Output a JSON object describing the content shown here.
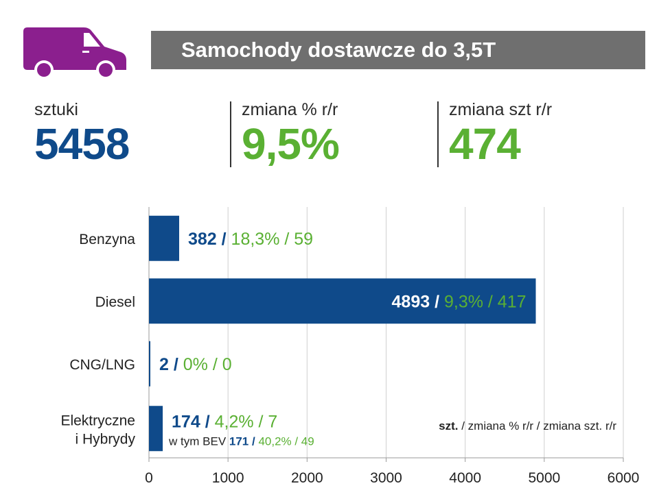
{
  "header": {
    "title": "Samochody dostawcze do 3,5T",
    "icon": "van-icon",
    "icon_color": "#8b1f8e",
    "title_bg": "#6f6f6f"
  },
  "kpis": [
    {
      "label": "sztuki",
      "value": "5458",
      "color": "#0f4a8a"
    },
    {
      "label": "zmiana % r/r",
      "value": "9,5%",
      "color": "#5ab033"
    },
    {
      "label": "zmiana szt r/r",
      "value": "474",
      "color": "#5ab033"
    }
  ],
  "colors": {
    "bar": "#0f4a8a",
    "value": "#0f4a8a",
    "change": "#5ab033"
  },
  "chart_data": {
    "type": "bar",
    "orientation": "horizontal",
    "categories": [
      "Benzyna",
      "Diesel",
      "CNG/LNG",
      "Elektryczne\ni Hybrydy"
    ],
    "values": [
      382,
      4893,
      2,
      174
    ],
    "labels": [
      {
        "value": "382",
        "rest": "18,3% / 59"
      },
      {
        "value": "4893",
        "rest": "9,3% / 417"
      },
      {
        "value": "2",
        "rest": "0% / 0"
      },
      {
        "value": "174",
        "rest": "4,2% / 7"
      }
    ],
    "sub_label": {
      "prefix": "w tym BEV ",
      "value": "171",
      "rest": "40,2% / 49"
    },
    "legend": {
      "bold": "szt.",
      "rest": " / zmiana % r/r / zmiana szt. r/r"
    },
    "xlim": [
      0,
      6000
    ],
    "xticks": [
      0,
      1000,
      2000,
      3000,
      4000,
      5000,
      6000
    ],
    "grid": true
  }
}
